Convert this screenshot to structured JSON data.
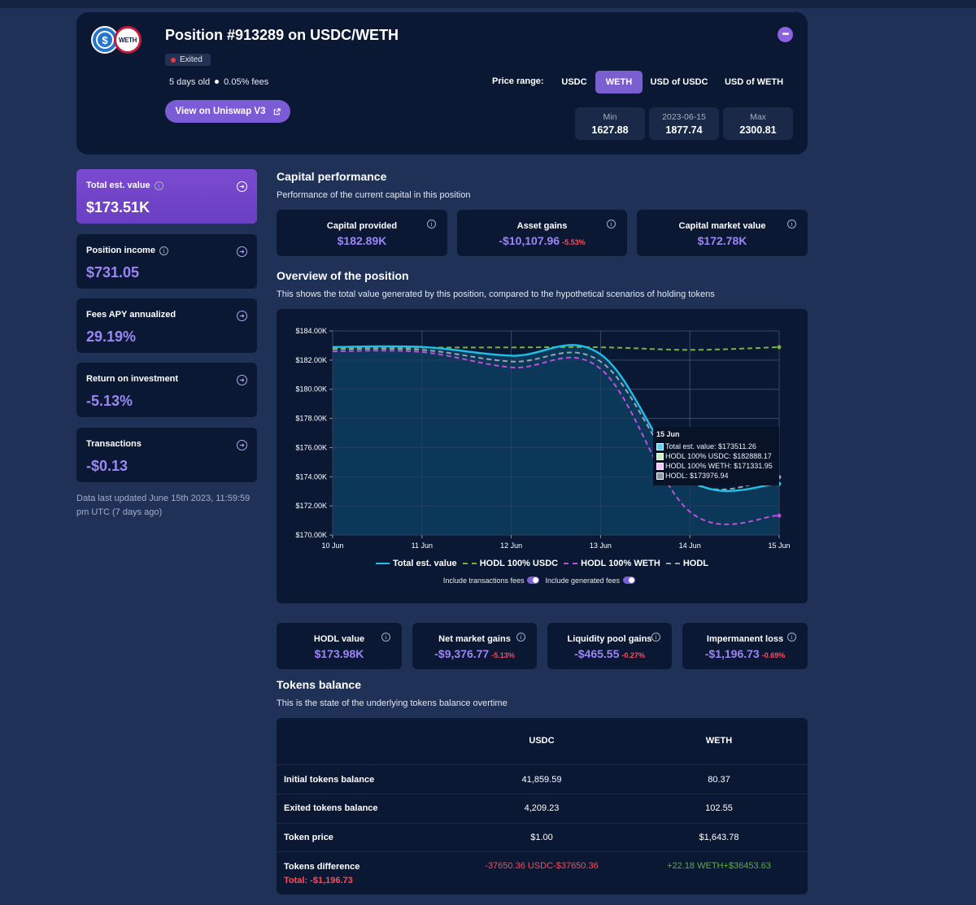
{
  "header": {
    "title": "Position #913289 on USDC/WETH",
    "status": "Exited",
    "age": "5 days old",
    "fees": "0.05% fees",
    "view_button": "View on Uniswap V3",
    "weth_logo_text": "WETH",
    "price_range_label": "Price range:",
    "price_tabs": [
      {
        "label": "USDC",
        "active": false
      },
      {
        "label": "WETH",
        "active": true
      },
      {
        "label": "USD of USDC",
        "active": false
      },
      {
        "label": "USD of WETH",
        "active": false
      }
    ],
    "range": {
      "min_label": "Min",
      "min_value": "1627.88",
      "cur_label": "2023-06-15",
      "cur_value": "1877.74",
      "max_label": "Max",
      "max_value": "2300.81"
    }
  },
  "stats": [
    {
      "label": "Total est. value",
      "value": "$173.51K",
      "info": true,
      "highlight": true
    },
    {
      "label": "Position income",
      "value": "$731.05",
      "info": true,
      "highlight": false
    },
    {
      "label": "Fees APY annualized",
      "value": "29.19%",
      "info": false,
      "highlight": false
    },
    {
      "label": "Return on investment",
      "value": "-5.13%",
      "info": false,
      "highlight": false
    },
    {
      "label": "Transactions",
      "value": "-$0.13",
      "info": false,
      "highlight": false
    }
  ],
  "updated_note": "Data last updated June 15th 2023, 11:59:59 pm UTC (7 days ago)",
  "capital": {
    "title": "Capital performance",
    "subtitle": "Performance of the current capital in this position",
    "cards": [
      {
        "label": "Capital provided",
        "value": "$182.89K",
        "pct": ""
      },
      {
        "label": "Asset gains",
        "value": "-$10,107.96",
        "pct": "-5.53%"
      },
      {
        "label": "Capital market value",
        "value": "$172.78K",
        "pct": ""
      }
    ]
  },
  "overview": {
    "title": "Overview of the position",
    "subtitle": "This shows the total value generated by this position, compared to the hypothetical scenarios of holding tokens",
    "toggle1": "Include transactions fees",
    "toggle2": "Include generated fees",
    "tooltip": {
      "date": "15 Jun",
      "rows": [
        {
          "text": "Total est. value: $173511.26",
          "color": "#5fd0f0"
        },
        {
          "text": "HODL 100% USDC: $182888.17",
          "color": "#c8f0c0"
        },
        {
          "text": "HODL 100% WETH: $171331.95",
          "color": "#f3c6ff"
        },
        {
          "text": "HODL: $173976.94",
          "color": "#8e95a5"
        }
      ]
    }
  },
  "chart_data": {
    "type": "line",
    "x": [
      "10 Jun",
      "11 Jun",
      "12 Jun",
      "13 Jun",
      "14 Jun",
      "15 Jun"
    ],
    "y_ticks": [
      "$170.00K",
      "$172.00K",
      "$174.00K",
      "$176.00K",
      "$178.00K",
      "$180.00K",
      "$182.00K",
      "$184.00K"
    ],
    "ylim": [
      170000,
      184000
    ],
    "grid": true,
    "legend_position": "bottom",
    "series": [
      {
        "name": "Total est. value",
        "color": "#1ec0e8",
        "dash": false,
        "area": true,
        "values": [
          182900,
          182900,
          182300,
          182400,
          173800,
          173511
        ]
      },
      {
        "name": "HODL 100% USDC",
        "color": "#77b140",
        "dash": true,
        "area": false,
        "values": [
          182850,
          182860,
          182870,
          182880,
          182700,
          182888
        ]
      },
      {
        "name": "HODL 100% WETH",
        "color": "#c04ed8",
        "dash": true,
        "area": false,
        "values": [
          182600,
          182550,
          181500,
          181400,
          171600,
          171332
        ]
      },
      {
        "name": "HODL",
        "color": "#9aa2b6",
        "dash": true,
        "area": false,
        "values": [
          182750,
          182700,
          181900,
          181900,
          173700,
          173977
        ]
      }
    ]
  },
  "bottom_metrics": [
    {
      "label": "HODL value",
      "value": "$173.98K",
      "pct": ""
    },
    {
      "label": "Net market gains",
      "value": "-$9,376.77",
      "pct": "-5.13%"
    },
    {
      "label": "Liquidity pool gains",
      "value": "-$465.55",
      "pct": "-0.27%"
    },
    {
      "label": "Impermanent loss",
      "value": "-$1,196.73",
      "pct": "-0.69%"
    }
  ],
  "tokens": {
    "title": "Tokens balance",
    "subtitle": "This is the state of the underlying tokens balance overtime",
    "col1": "USDC",
    "col2": "WETH",
    "rows": [
      {
        "label": "Initial tokens balance",
        "c1": "41,859.59",
        "c2": "80.37"
      },
      {
        "label": "Exited tokens balance",
        "c1": "4,209.23",
        "c2": "102.55"
      },
      {
        "label": "Token price",
        "c1": "$1.00",
        "c2": "$1,643.78"
      }
    ],
    "diff": {
      "label": "Tokens difference",
      "total": "Total: -$1,196.73",
      "c1": "-37650.36 USDC-$37650.36",
      "c2": "+22.18 WETH+$36453.63"
    }
  }
}
